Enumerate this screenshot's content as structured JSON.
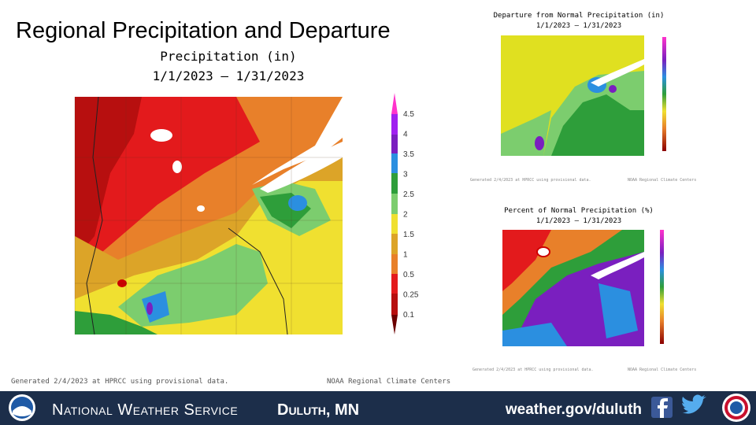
{
  "slide": {
    "title": "Regional Precipitation and Departure",
    "main_map": {
      "title": "Precipitation (in)",
      "dates": "1/1/2023 – 1/31/2023",
      "legend": [
        4.5,
        4,
        3.5,
        3,
        2.5,
        2,
        1.5,
        1,
        0.5,
        0.25,
        0.1
      ],
      "generated": "Generated 2/4/2023 at HPRCC using provisional data.",
      "source": "NOAA Regional Climate Centers"
    },
    "departure_map": {
      "title": "Departure from Normal Precipitation (in)",
      "dates": "1/1/2023 – 1/31/2023",
      "generated": "Generated 2/4/2023 at HPRCC using provisional data.",
      "source": "NOAA Regional Climate Centers"
    },
    "percent_map": {
      "title": "Percent of Normal Precipitation (%)",
      "dates": "1/1/2023 – 1/31/2023",
      "generated": "Generated 2/4/2023 at HPRCC using provisional data.",
      "source": "NOAA Regional Climate Centers"
    },
    "footer": {
      "organization": "National Weather Service",
      "office": "Duluth, MN",
      "website": "weather.gov/duluth"
    }
  }
}
